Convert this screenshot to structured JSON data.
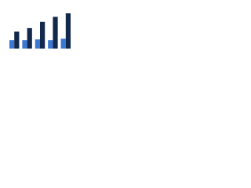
{
  "chart_data": {
    "type": "bar",
    "categories": [
      null,
      null,
      null,
      null,
      null
    ],
    "series": [
      {
        "color": "#3a78d4",
        "values": [
          12,
          12,
          13,
          12,
          14
        ]
      },
      {
        "color": "#13294b",
        "values": [
          24,
          29,
          38,
          45,
          50
        ]
      }
    ],
    "ylim": [
      0,
      60
    ]
  }
}
